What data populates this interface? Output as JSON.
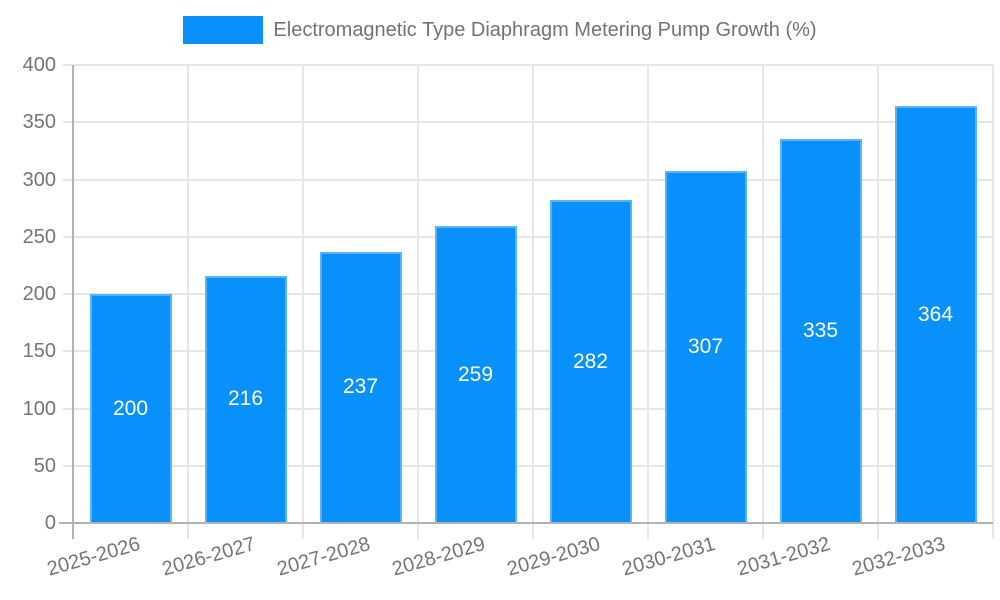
{
  "chart_data": {
    "type": "bar",
    "title": "Electromagnetic Type Diaphragm Metering Pump Growth (%)",
    "categories": [
      "2025-2026",
      "2026-2027",
      "2027-2028",
      "2028-2029",
      "2029-2030",
      "2030-2031",
      "2031-2032",
      "2032-2033"
    ],
    "values": [
      200,
      216,
      237,
      259,
      282,
      307,
      335,
      364
    ],
    "value_labels": [
      "200",
      "216",
      "237",
      "259",
      "282",
      "307",
      "335",
      "364"
    ],
    "ytick_labels": [
      "0",
      "50",
      "100",
      "150",
      "200",
      "250",
      "300",
      "350",
      "400"
    ],
    "ylim": [
      0,
      400
    ],
    "ytick_step": 50,
    "xlabel": "",
    "ylabel": "",
    "grid": true,
    "legend_position": "top",
    "colors": {
      "bar_fill": "#0991fb",
      "bar_border": "#5ab2f9",
      "value_label": "#ffffff",
      "axis_line": "#b3b3b3",
      "gridline": "#e6e6e6",
      "tick_label": "#757575",
      "legend_text": "#737373",
      "background": "#ffffff"
    }
  }
}
